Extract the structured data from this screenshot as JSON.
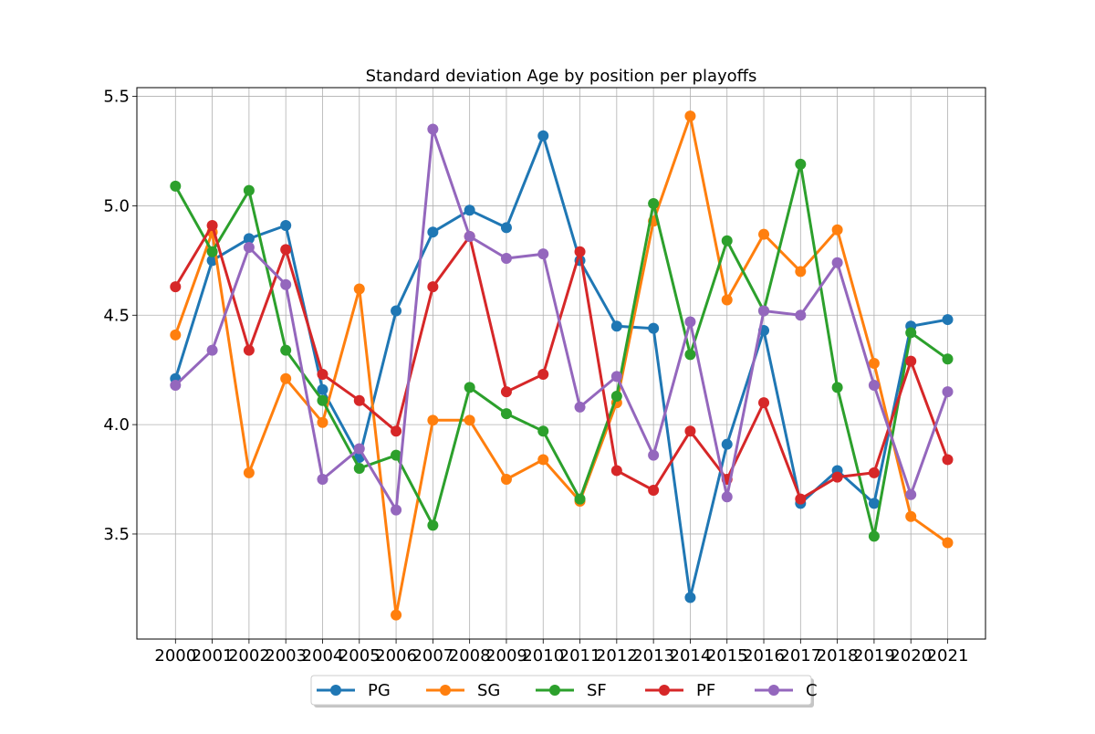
{
  "chart_data": {
    "type": "line",
    "title": "Standard deviation Age by position per playoffs",
    "xlabel": "",
    "ylabel": "",
    "categories": [
      "2000",
      "2001",
      "2002",
      "2003",
      "2004",
      "2005",
      "2006",
      "2007",
      "2008",
      "2009",
      "2010",
      "2011",
      "2012",
      "2013",
      "2014",
      "2015",
      "2016",
      "2017",
      "2018",
      "2019",
      "2020",
      "2021"
    ],
    "ylim": [
      3.02,
      5.54
    ],
    "yticks": [
      "3.5",
      "4.0",
      "4.5",
      "5.0",
      "5.5"
    ],
    "grid": true,
    "legend_position": "bottom-center",
    "series": [
      {
        "name": "PG",
        "color": "#1f77b4",
        "values": [
          4.21,
          4.75,
          4.85,
          4.91,
          4.16,
          3.85,
          4.52,
          4.88,
          4.98,
          4.9,
          5.32,
          4.75,
          4.45,
          4.44,
          3.21,
          3.91,
          4.43,
          3.64,
          3.79,
          3.64,
          4.45,
          4.48
        ]
      },
      {
        "name": "SG",
        "color": "#ff7f0e",
        "values": [
          4.41,
          4.88,
          3.78,
          4.21,
          4.01,
          4.62,
          3.13,
          4.02,
          4.02,
          3.75,
          3.84,
          3.65,
          4.1,
          4.93,
          5.41,
          4.57,
          4.87,
          4.7,
          4.89,
          4.28,
          3.58,
          3.46
        ]
      },
      {
        "name": "SF",
        "color": "#2ca02c",
        "values": [
          5.09,
          4.79,
          5.07,
          4.34,
          4.11,
          3.8,
          3.86,
          3.54,
          4.17,
          4.05,
          3.97,
          3.66,
          4.13,
          5.01,
          4.32,
          4.84,
          4.52,
          5.19,
          4.17,
          3.49,
          4.42,
          4.3
        ]
      },
      {
        "name": "PF",
        "color": "#d62728",
        "values": [
          4.63,
          4.91,
          4.34,
          4.8,
          4.23,
          4.11,
          3.97,
          4.63,
          4.86,
          4.15,
          4.23,
          4.79,
          3.79,
          3.7,
          3.97,
          3.75,
          4.1,
          3.66,
          3.76,
          3.78,
          4.29,
          3.84
        ]
      },
      {
        "name": "C",
        "color": "#9467bd",
        "values": [
          4.18,
          4.34,
          4.81,
          4.64,
          3.75,
          3.89,
          3.61,
          5.35,
          4.86,
          4.76,
          4.78,
          4.08,
          4.22,
          3.86,
          4.47,
          3.67,
          4.52,
          4.5,
          4.74,
          4.18,
          3.68,
          4.15
        ]
      }
    ]
  }
}
